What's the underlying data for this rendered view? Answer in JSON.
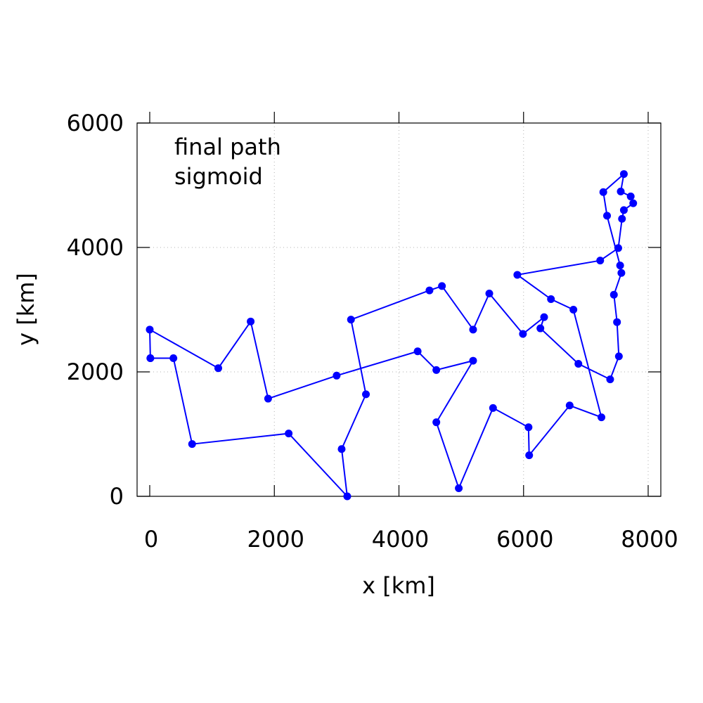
{
  "chart_data": {
    "type": "line",
    "annotation_lines": [
      "final path",
      "sigmoid"
    ],
    "xlabel": "x [km]",
    "ylabel": "y [km]",
    "xlim": [
      0,
      8000
    ],
    "ylim": [
      0,
      6000
    ],
    "x_ticks": [
      0,
      2000,
      4000,
      6000,
      8000
    ],
    "y_ticks": [
      0,
      2000,
      4000,
      6000
    ],
    "x_tick_labels": [
      "0",
      "2000",
      "4000",
      "6000",
      "8000"
    ],
    "y_tick_labels": [
      "0",
      "2000",
      "4000",
      "6000"
    ],
    "grid": true,
    "series_color": "#0000ff",
    "series": [
      {
        "x": [
          10,
          0,
          1100,
          1620,
          1900,
          3000,
          4300,
          4600,
          5190,
          4600,
          4960,
          5510,
          6080,
          6090,
          6740,
          7250,
          6800,
          6440,
          5900,
          7230,
          7520,
          7580,
          7610,
          7760,
          7720,
          7560,
          7610,
          7280,
          7340,
          7550,
          7570,
          7450,
          7500,
          7530,
          7390,
          6880,
          6270,
          6330,
          5990,
          5450,
          5190,
          4690,
          4490,
          3230,
          3470,
          3080,
          3170,
          2230,
          680,
          380,
          10
        ],
        "y": [
          2220,
          2680,
          2060,
          2810,
          1570,
          1940,
          2330,
          2030,
          2180,
          1190,
          130,
          1420,
          1110,
          660,
          1460,
          1270,
          3000,
          3170,
          3560,
          3790,
          3990,
          4460,
          4600,
          4710,
          4820,
          4900,
          5180,
          4890,
          4510,
          3710,
          3590,
          3240,
          2800,
          2250,
          1880,
          2130,
          2700,
          2880,
          2610,
          3260,
          2680,
          3380,
          3310,
          2840,
          1640,
          760,
          0,
          1010,
          840,
          2220,
          2220
        ]
      }
    ]
  }
}
